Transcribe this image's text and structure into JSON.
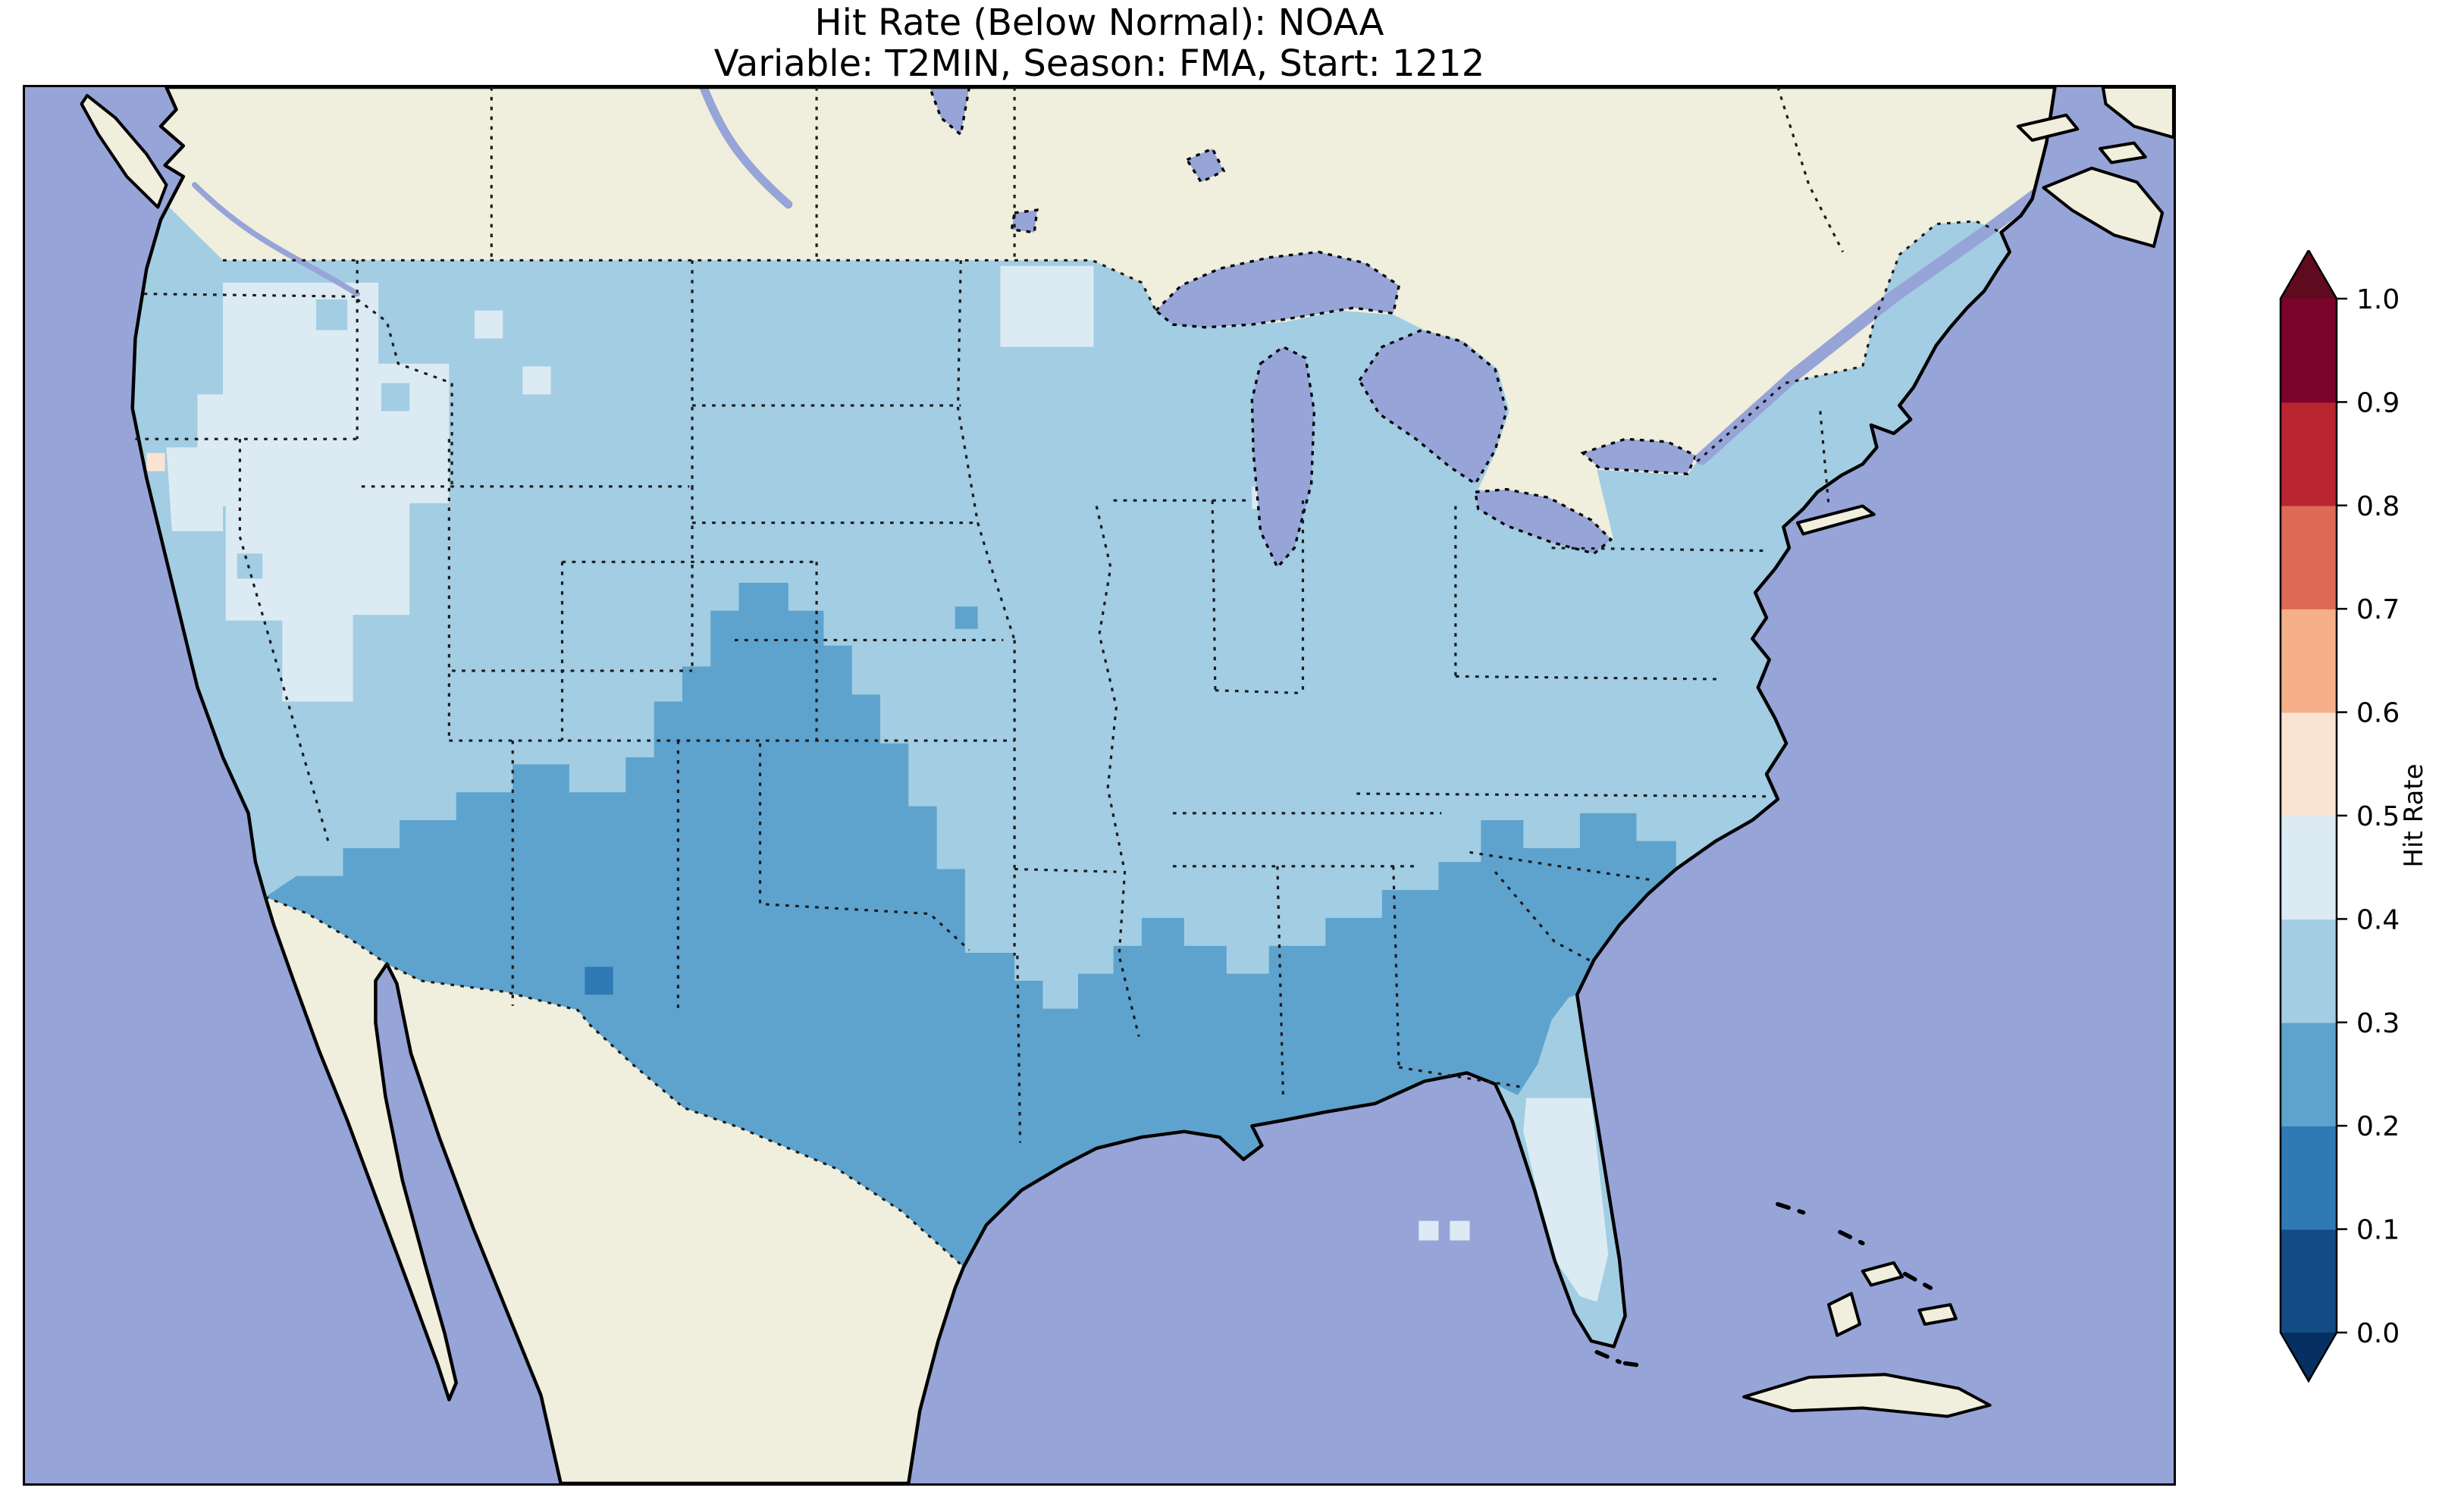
{
  "title": {
    "line1": "Hit Rate (Below Normal): NOAA",
    "line2": "Variable: T2MIN, Season: FMA, Start: 1212"
  },
  "colorbar": {
    "label": "Hit Rate",
    "ticks": [
      "0.0",
      "0.1",
      "0.2",
      "0.3",
      "0.4",
      "0.5",
      "0.6",
      "0.7",
      "0.8",
      "0.9",
      "1.0"
    ],
    "bin_colors": [
      "#134c85",
      "#2f79b5",
      "#5da3cd",
      "#a2cde3",
      "#dcebf3",
      "#fbe3d4",
      "#f5b08a",
      "#dd6a55",
      "#b92531",
      "#79032a"
    ],
    "under_color": "#053061",
    "over_color": "#5f0a1e"
  },
  "colors": {
    "ocean": "#96a4d8",
    "land": "#f0eedc",
    "b0": "#134c85",
    "b1": "#2f79b5",
    "b2": "#5da3cd",
    "b3": "#a2cde3",
    "b4": "#dcebf3",
    "b5": "#fbe3d4",
    "b6": "#f5b08a",
    "b7": "#dd6a55",
    "b8": "#b92531",
    "b9": "#79032a"
  },
  "chart_data": {
    "type": "heatmap",
    "title": "Hit Rate (Below Normal): NOAA",
    "subtitle": "Variable: T2MIN, Season: FMA, Start: 1212",
    "model": "NOAA",
    "metric": "Hit Rate (Below Normal)",
    "variable": "T2MIN",
    "season": "FMA",
    "start": "1212",
    "region": "Contiguous United States, gridded lat/lon map with Canada and Mexico masked (no data)",
    "colorbar_label": "Hit Rate",
    "value_range": [
      0.0,
      1.0
    ],
    "tick_step": 0.1,
    "colormap": "RdBu_r, 10 discrete bins, extend arrows on both ends",
    "observed_values": [
      {
        "area": "Interior Pacific Northwest and Great Basin (eastern Washington, Oregon, Idaho, Nevada, western Utah, northern California)",
        "hit_rate_bin": "0.4-0.5"
      },
      {
        "area": "Northern Plains, Upper Midwest, Ohio Valley, Northeast and mid-Atlantic",
        "hit_rate_bin": "0.3-0.4"
      },
      {
        "area": "Southwest (Arizona, New Mexico), Texas, central High Plains, Gulf Coast states, Georgia and coastal Carolinas",
        "hit_rate_bin": "0.2-0.3"
      },
      {
        "area": "Single grid cell in central New Mexico",
        "hit_rate_bin": "0.1-0.2"
      },
      {
        "area": "Single grid cell in northern California",
        "hit_rate_bin": "0.5-0.6"
      },
      {
        "area": "Florida peninsula",
        "hit_rate_bin": "0.4-0.5"
      }
    ]
  }
}
